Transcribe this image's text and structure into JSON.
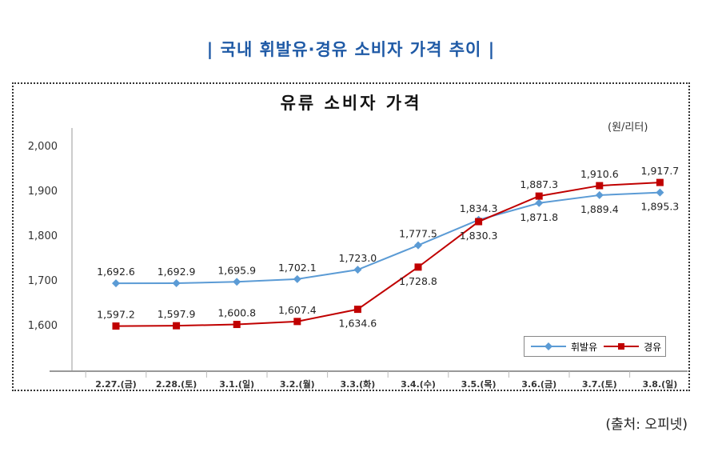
{
  "page_title": "| 국내 휘발유·경유 소비자 가격 추이 |",
  "source": "(출처: 오피넷)",
  "chart_data": {
    "type": "line",
    "title": "유류 소비자 가격",
    "unit": "(원/리터)",
    "categories": [
      "2.27.(금)",
      "2.28.(토)",
      "3.1.(일)",
      "3.2.(월)",
      "3.3.(화)",
      "3.4.(수)",
      "3.5.(목)",
      "3.6.(금)",
      "3.7.(토)",
      "3.8.(일)"
    ],
    "ylim": [
      1500,
      2000
    ],
    "yticks": [
      1600,
      1700,
      1800,
      1900,
      2000
    ],
    "ytick_labels": [
      "1,600",
      "1,700",
      "1,800",
      "1,900",
      "2,000"
    ],
    "grid": false,
    "legend_position": "bottom-right",
    "series": [
      {
        "name": "휘발유",
        "color": "#5b9bd5",
        "marker": "diamond",
        "values": [
          1692.6,
          1692.9,
          1695.9,
          1702.1,
          1723.0,
          1777.5,
          1834.3,
          1871.8,
          1889.4,
          1895.3
        ],
        "labels": [
          "1,692.6",
          "1,692.9",
          "1,695.9",
          "1,702.1",
          "1,723.0",
          "1,777.5",
          "1,834.3",
          "1,871.8",
          "1,889.4",
          "1,895.3"
        ]
      },
      {
        "name": "경유",
        "color": "#c00000",
        "marker": "square",
        "values": [
          1597.2,
          1597.9,
          1600.8,
          1607.4,
          1634.6,
          1728.8,
          1830.3,
          1887.3,
          1910.6,
          1917.7
        ],
        "labels": [
          "1,597.2",
          "1,597.9",
          "1,600.8",
          "1,607.4",
          "1,634.6",
          "1,728.8",
          "1,830.3",
          "1,887.3",
          "1,910.6",
          "1,917.7"
        ]
      }
    ]
  }
}
